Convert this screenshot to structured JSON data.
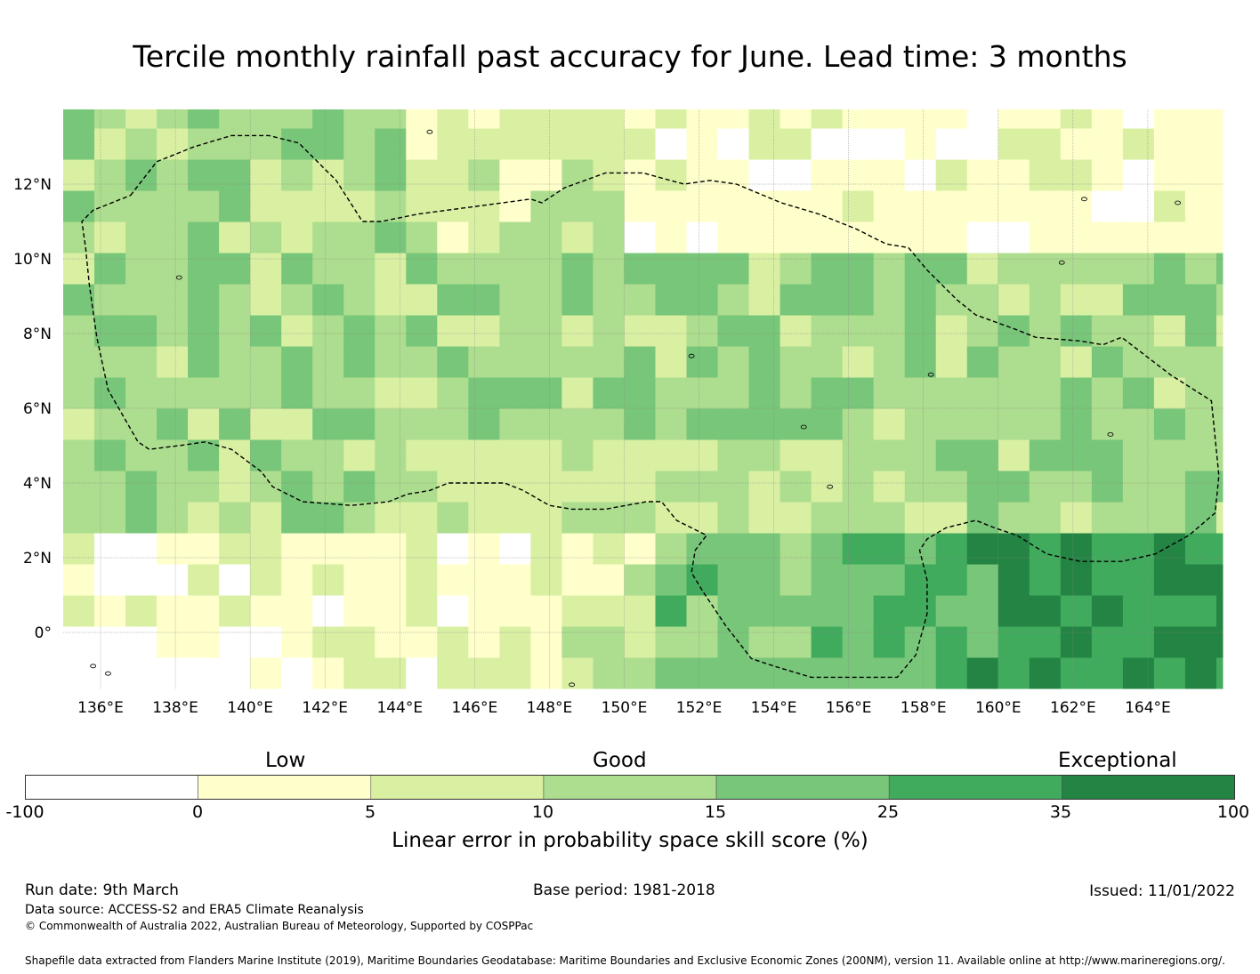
{
  "title": "Tercile monthly rainfall past accuracy for June. Lead time: 3 months",
  "map": {
    "lon_labels": [
      "136°E",
      "138°E",
      "140°E",
      "142°E",
      "144°E",
      "146°E",
      "148°E",
      "150°E",
      "152°E",
      "154°E",
      "156°E",
      "158°E",
      "160°E",
      "162°E",
      "164°E"
    ],
    "lon_values": [
      136,
      138,
      140,
      142,
      144,
      146,
      148,
      150,
      152,
      154,
      156,
      158,
      160,
      162,
      164
    ],
    "lat_labels": [
      "12°N",
      "10°N",
      "8°N",
      "6°N",
      "4°N",
      "2°N",
      "0°"
    ],
    "lat_values": [
      12,
      10,
      8,
      6,
      4,
      2,
      0
    ],
    "lon_range": [
      135,
      166
    ],
    "lat_range": [
      -1.5,
      14
    ],
    "grid": true,
    "eez_boundary": [
      [
        136.8,
        11.7
      ],
      [
        137.5,
        12.6
      ],
      [
        138.5,
        13.0
      ],
      [
        139.5,
        13.3
      ],
      [
        140.5,
        13.3
      ],
      [
        141.3,
        13.1
      ],
      [
        142.3,
        12.1
      ],
      [
        143.0,
        11.0
      ],
      [
        143.5,
        11.0
      ],
      [
        144.5,
        11.2
      ],
      [
        146.0,
        11.4
      ],
      [
        147.5,
        11.6
      ],
      [
        147.8,
        11.5
      ],
      [
        148.4,
        11.9
      ],
      [
        149.5,
        12.3
      ],
      [
        150.5,
        12.3
      ],
      [
        151.6,
        12.0
      ],
      [
        152.3,
        12.1
      ],
      [
        153.0,
        12.0
      ],
      [
        154.2,
        11.5
      ],
      [
        155.2,
        11.2
      ],
      [
        156.2,
        10.8
      ],
      [
        157.0,
        10.4
      ],
      [
        157.6,
        10.3
      ],
      [
        158.1,
        9.7
      ],
      [
        158.9,
        8.9
      ],
      [
        159.4,
        8.5
      ],
      [
        160.5,
        8.1
      ],
      [
        161.0,
        7.9
      ],
      [
        162.2,
        7.8
      ],
      [
        162.8,
        7.7
      ],
      [
        163.3,
        7.9
      ],
      [
        164.6,
        6.9
      ],
      [
        165.7,
        6.2
      ],
      [
        165.8,
        5.2
      ],
      [
        165.9,
        4.2
      ],
      [
        165.8,
        3.2
      ],
      [
        165.1,
        2.6
      ],
      [
        164.2,
        2.1
      ],
      [
        163.3,
        1.9
      ],
      [
        162.2,
        1.9
      ],
      [
        161.3,
        2.1
      ],
      [
        160.5,
        2.6
      ],
      [
        159.9,
        2.8
      ],
      [
        159.4,
        3.0
      ],
      [
        158.6,
        2.8
      ],
      [
        158.1,
        2.5
      ],
      [
        157.9,
        2.2
      ],
      [
        158.1,
        1.4
      ],
      [
        158.1,
        0.5
      ],
      [
        157.8,
        -0.6
      ],
      [
        157.3,
        -1.2
      ],
      [
        155.0,
        -1.2
      ],
      [
        154.0,
        -0.9
      ],
      [
        153.4,
        -0.7
      ],
      [
        152.7,
        0.2
      ],
      [
        152.1,
        1.1
      ],
      [
        151.8,
        1.6
      ],
      [
        151.9,
        2.2
      ],
      [
        152.2,
        2.6
      ],
      [
        151.4,
        3.0
      ],
      [
        151.0,
        3.5
      ],
      [
        150.6,
        3.5
      ],
      [
        149.5,
        3.3
      ],
      [
        148.6,
        3.3
      ],
      [
        148.0,
        3.4
      ],
      [
        147.3,
        3.8
      ],
      [
        146.8,
        4.0
      ],
      [
        146.0,
        4.0
      ],
      [
        145.3,
        4.0
      ],
      [
        144.8,
        3.8
      ],
      [
        144.2,
        3.7
      ],
      [
        143.7,
        3.5
      ],
      [
        142.7,
        3.4
      ],
      [
        141.4,
        3.5
      ],
      [
        140.6,
        3.9
      ],
      [
        140.3,
        4.3
      ],
      [
        139.5,
        4.9
      ],
      [
        138.8,
        5.1
      ],
      [
        138.1,
        5.0
      ],
      [
        137.3,
        4.9
      ],
      [
        137.0,
        5.1
      ],
      [
        136.2,
        6.5
      ],
      [
        135.9,
        7.9
      ],
      [
        135.7,
        9.3
      ],
      [
        135.6,
        10.3
      ],
      [
        135.5,
        11.0
      ],
      [
        135.8,
        11.3
      ]
    ]
  },
  "colorbar": {
    "categories": [
      "Low",
      "Good",
      "Exceptional"
    ],
    "ticks": [
      "-100",
      "0",
      "5",
      "10",
      "15",
      "25",
      "35",
      "100"
    ],
    "bins": [
      {
        "from": -100,
        "to": 0,
        "color": "#ffffff"
      },
      {
        "from": 0,
        "to": 5,
        "color": "#ffffcc"
      },
      {
        "from": 5,
        "to": 10,
        "color": "#d9f0a3"
      },
      {
        "from": 10,
        "to": 15,
        "color": "#addd8e"
      },
      {
        "from": 15,
        "to": 25,
        "color": "#78c679"
      },
      {
        "from": 25,
        "to": 35,
        "color": "#41ab5d"
      },
      {
        "from": 35,
        "to": 100,
        "color": "#238443"
      }
    ],
    "title": "Linear error in probability space skill score (%)"
  },
  "footer": {
    "run_date": "Run date: 9th March",
    "base_period": "Base period: 1981-2018",
    "issued": "Issued: 11/01/2022",
    "data_source": "Data source: ACCESS-S2 and ERA5 Climate Reanalysis",
    "copyright": "© Commonwealth of Australia 2022, Australian Bureau of Meteorology, Supported by COSPPac",
    "shapefile": "Shapefile data extracted from Flanders Marine Institute (2019), Maritime Boundaries Geodatabase: Maritime Boundaries and Exclusive Economic Zones (200NM), version 11. Available online at http://www.marineregions.org/."
  }
}
